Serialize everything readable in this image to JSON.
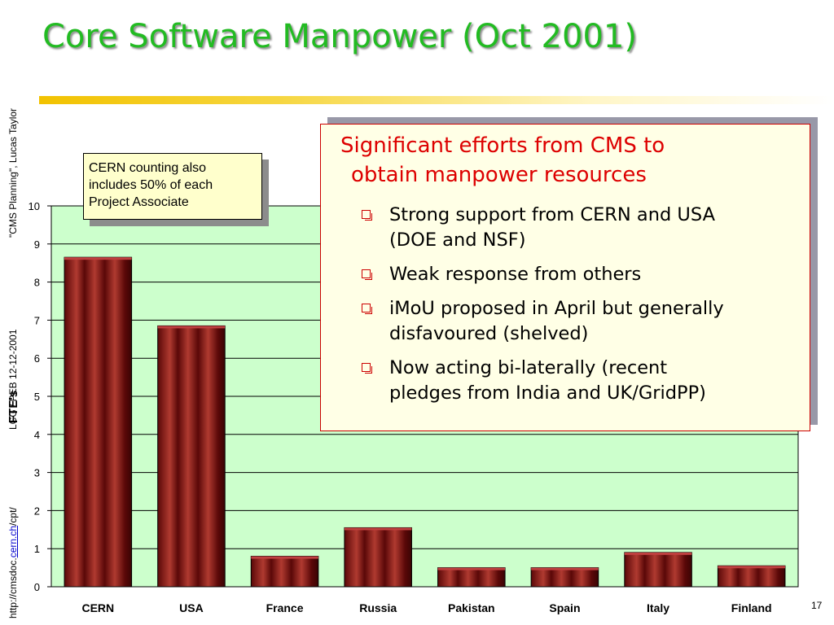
{
  "slide": {
    "title": "Core Software Manpower (Oct 2001)",
    "page_number": "17",
    "side_text_top": "\"CMS Planning\",  Lucas Taylor",
    "side_text_mid": "LCG / PEB  12-12-2001",
    "side_url_prefix": "http://cmsdoc.",
    "side_url_link": "cern.ch",
    "side_url_suffix": "/cpt/"
  },
  "callout": {
    "line1": "CERN  counting also",
    "line2": "includes 50% of each",
    "line3": "Project Associate"
  },
  "textbox": {
    "heading_line1": "Significant efforts from CMS to",
    "heading_line2": "obtain manpower resources",
    "bullets": [
      {
        "line1": "Strong support from CERN and USA",
        "line2": "(DOE and NSF)"
      },
      {
        "line1": "Weak response from others",
        "line2": ""
      },
      {
        "line1": "iMoU proposed in April but generally",
        "line2": "disfavoured (shelved)"
      },
      {
        "line1": "Now acting bi-laterally (recent",
        "line2": "pledges from India and UK/GridPP)"
      }
    ]
  },
  "chart_data": {
    "type": "bar",
    "categories": [
      "CERN",
      "USA",
      "France",
      "Russia",
      "Pakistan",
      "Spain",
      "Italy",
      "Finland"
    ],
    "values": [
      8.65,
      6.85,
      0.8,
      1.55,
      0.5,
      0.5,
      0.9,
      0.55
    ],
    "xlabel": "",
    "ylabel": "FTE's",
    "ylim": [
      0,
      10
    ],
    "yticks": [
      0,
      1,
      2,
      3,
      4,
      5,
      6,
      7,
      8,
      9,
      10
    ],
    "grid": true,
    "legend": "none",
    "plot_background": "#ccffcc",
    "bar_color": "#7a1010"
  }
}
